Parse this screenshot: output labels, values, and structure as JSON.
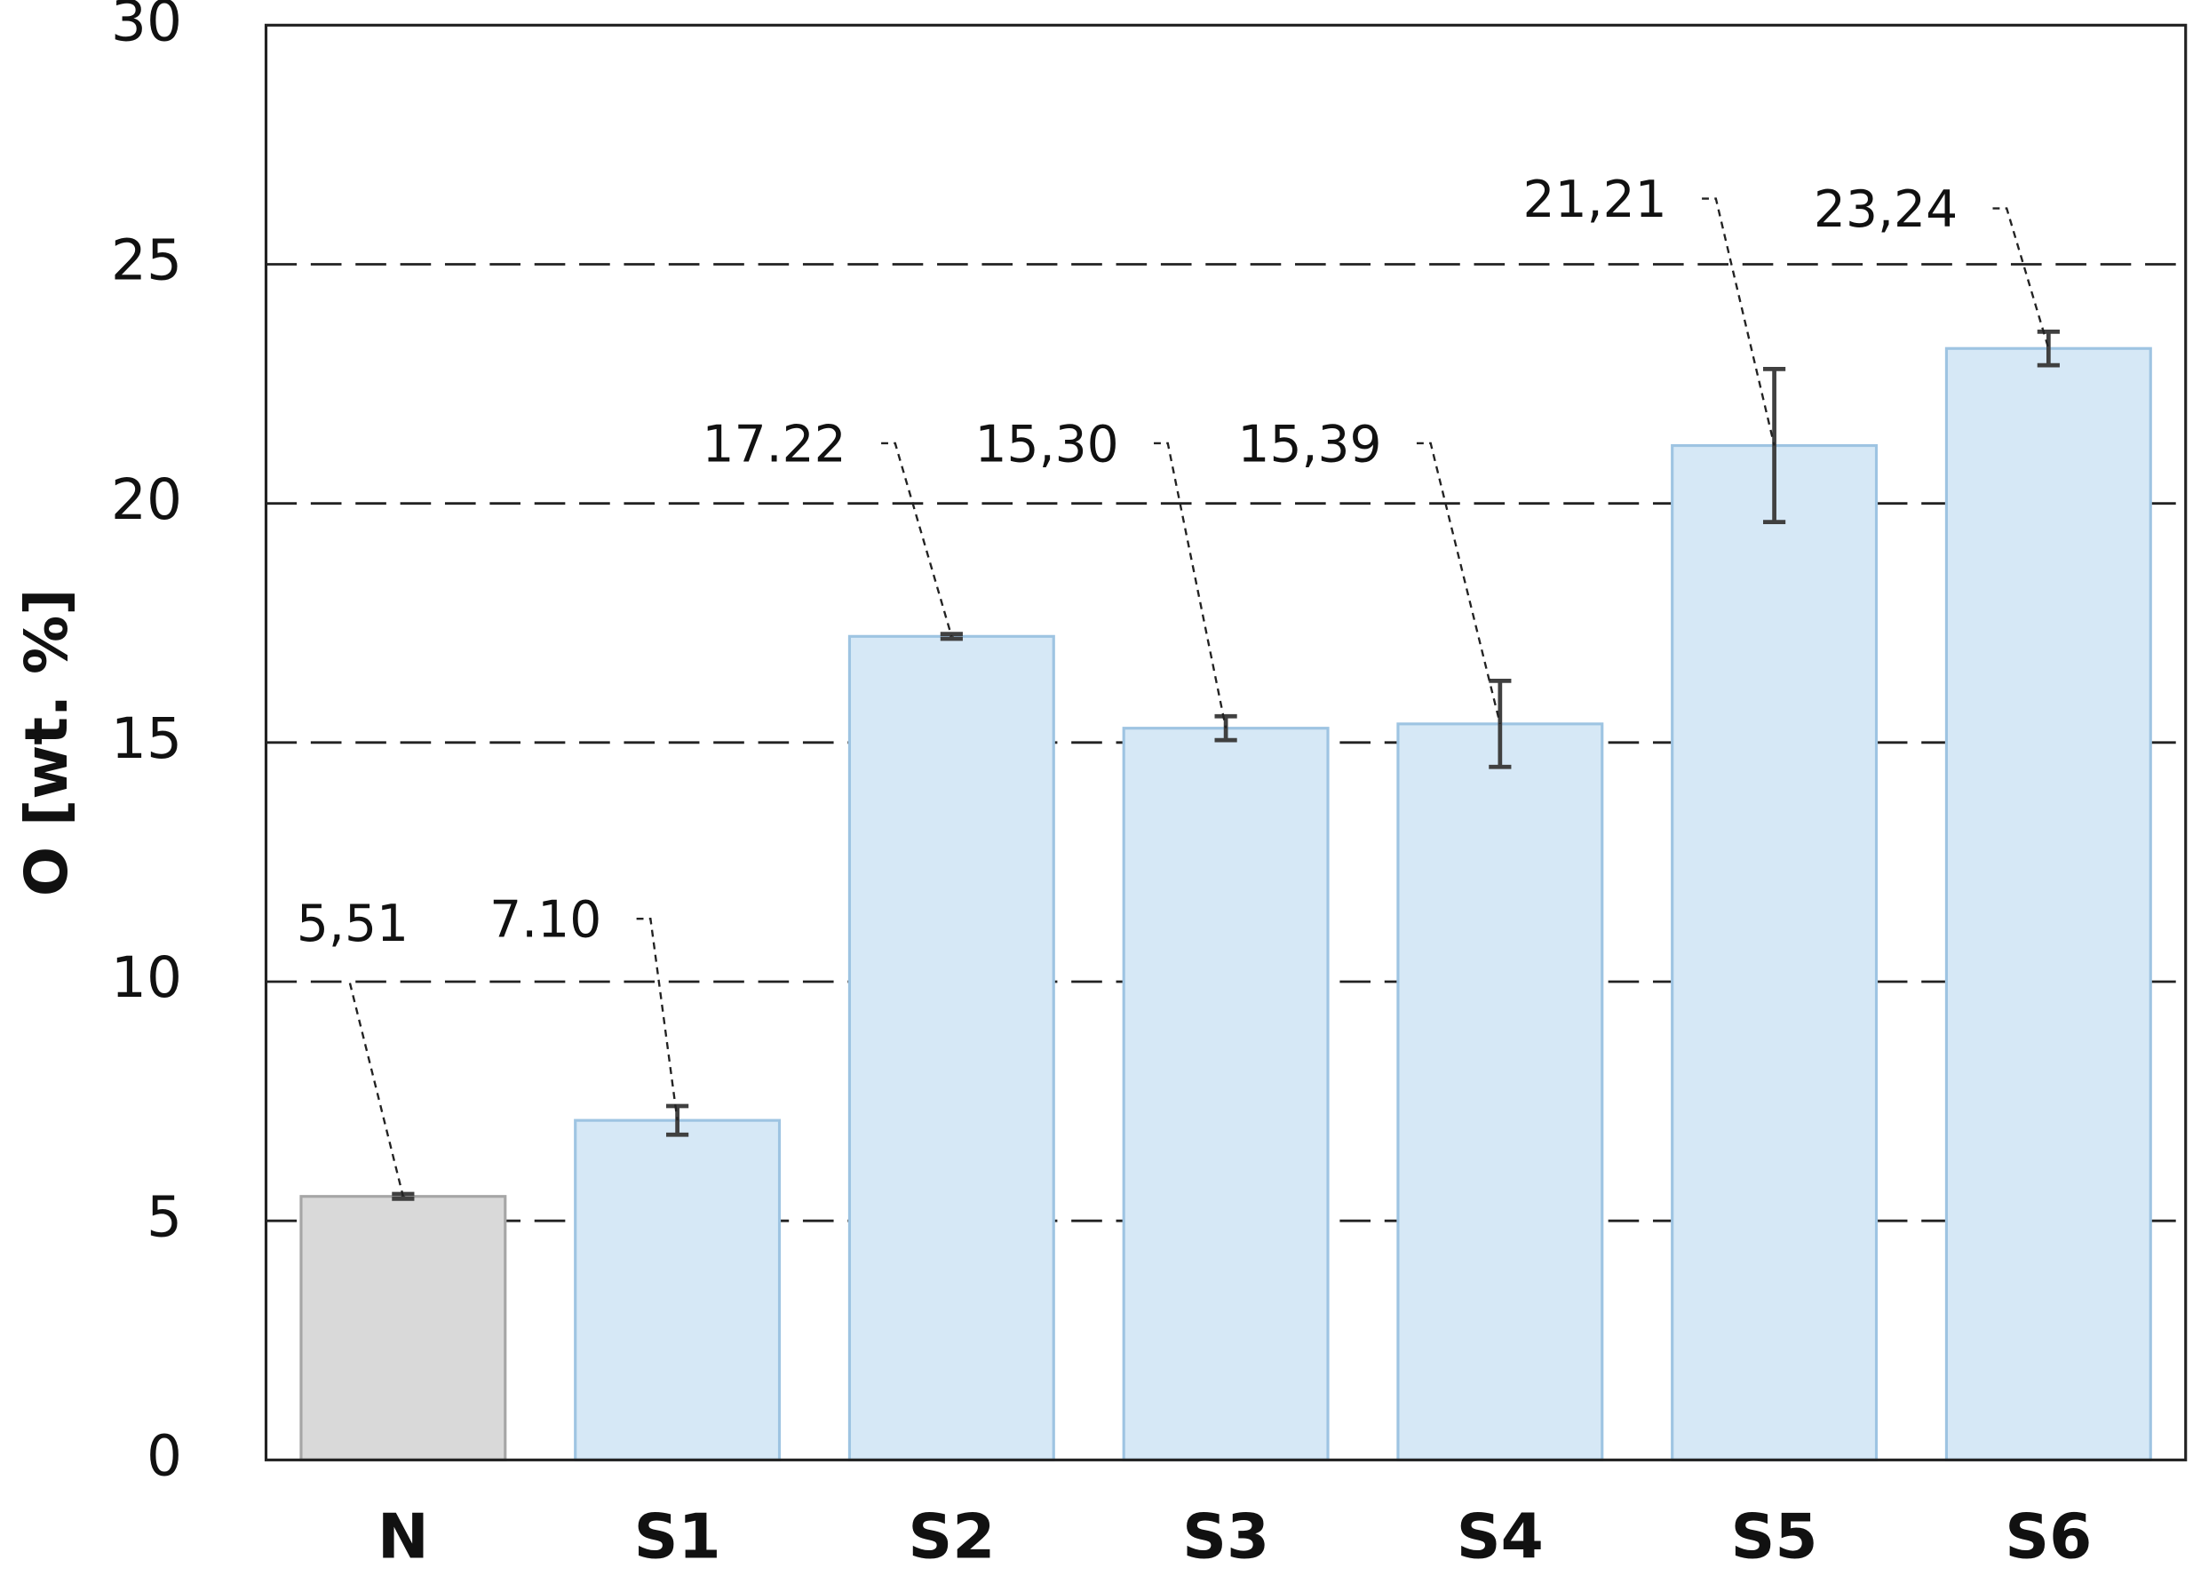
{
  "chart_data": {
    "type": "bar",
    "y_label": "O [wt. %]",
    "categories": [
      "N",
      "S1",
      "S2",
      "S3",
      "S4",
      "S5",
      "S6"
    ],
    "values": [
      5.51,
      7.1,
      17.22,
      15.3,
      15.39,
      21.21,
      23.24
    ],
    "value_labels": [
      "5,51",
      "7.10",
      "17.22",
      "15,30",
      "15,39",
      "21,21",
      "23,24"
    ],
    "errors": [
      0.05,
      0.3,
      0.05,
      0.25,
      0.9,
      1.6,
      0.35
    ],
    "colors": [
      "#d9d9d9",
      "#d6e8f6",
      "#d6e8f6",
      "#d6e8f6",
      "#d6e8f6",
      "#d6e8f6",
      "#d6e8f6"
    ],
    "edge_colors": [
      "#a6a6a6",
      "#9ec4e2",
      "#9ec4e2",
      "#9ec4e2",
      "#9ec4e2",
      "#9ec4e2",
      "#9ec4e2"
    ],
    "ylim": [
      0,
      30
    ],
    "yticks": [
      0,
      5,
      10,
      15,
      20,
      25,
      30
    ],
    "grid": true
  }
}
